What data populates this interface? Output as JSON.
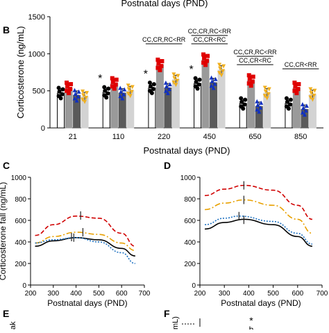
{
  "top_caption": "Postnatal days (PND)",
  "panels": {
    "b": "B",
    "c": "C",
    "d": "D",
    "e": "E",
    "f": "F"
  },
  "chart_data": [
    {
      "id": "B",
      "type": "bar",
      "xlabel": "Postnatal days (PND)",
      "ylabel": "Corticosterone (ng/mL)",
      "ylim": [
        0,
        1500
      ],
      "yticks": [
        0,
        500,
        1000,
        1500
      ],
      "categories": [
        "21",
        "110",
        "220",
        "450",
        "650",
        "850"
      ],
      "series": [
        {
          "color": "#ffffff",
          "edge": "#000000",
          "marker": "circle",
          "marker_color": "#000000",
          "values": [
            470,
            480,
            540,
            600,
            330,
            330
          ]
        },
        {
          "color": "#9a9a9a",
          "edge": "#9a9a9a",
          "marker": "square",
          "marker_color": "#e00000",
          "values": [
            540,
            600,
            850,
            920,
            640,
            540
          ]
        },
        {
          "color": "#5a5a5a",
          "edge": "#5a5a5a",
          "marker": "triangle",
          "marker_color": "#1030c0",
          "values": [
            440,
            470,
            540,
            610,
            290,
            250
          ]
        },
        {
          "color": "#d3d3d3",
          "edge": "#d3d3d3",
          "marker": "triangle-down",
          "marker_color": "#f0b020",
          "values": [
            420,
            500,
            650,
            780,
            470,
            450
          ]
        }
      ],
      "stars": [
        "",
        "*",
        "*",
        "*",
        "",
        ""
      ],
      "significance": [
        {
          "category": "220",
          "lines": [
            "CC,CR,RC<RR"
          ]
        },
        {
          "category": "450",
          "lines": [
            "CC,CR,RC<RR",
            "CC,CR<RC"
          ]
        },
        {
          "category": "650",
          "lines": [
            "CC,CR,RC<RR",
            "CC,CR<RC"
          ]
        },
        {
          "category": "850",
          "lines": [
            "CC,CR<RR"
          ]
        }
      ]
    },
    {
      "id": "C",
      "type": "line",
      "xlabel": "Postnatal days (PND)",
      "ylabel": "Corticosterone fall (ng/mL)",
      "xlim": [
        200,
        700
      ],
      "ylim": [
        0,
        1000
      ],
      "xticks": [
        200,
        300,
        400,
        500,
        600,
        700
      ],
      "yticks": [
        0,
        200,
        400,
        600,
        800,
        1000
      ],
      "series": [
        {
          "color": "#000000",
          "dash": "solid",
          "x": [
            220,
            300,
            400,
            500,
            600,
            660
          ],
          "y": [
            360,
            410,
            440,
            420,
            340,
            270
          ],
          "peak": [
            390,
            440
          ]
        },
        {
          "color": "#d00000",
          "dash": "dashed",
          "x": [
            220,
            300,
            400,
            500,
            600,
            660
          ],
          "y": [
            460,
            560,
            640,
            620,
            480,
            360
          ],
          "peak": [
            420,
            645
          ]
        },
        {
          "color": "#e8a000",
          "dash": "dashdot",
          "x": [
            220,
            300,
            400,
            500,
            600,
            660
          ],
          "y": [
            390,
            450,
            490,
            470,
            390,
            320
          ],
          "peak": [
            430,
            490
          ]
        },
        {
          "color": "#1a6fc0",
          "dash": "dotted",
          "x": [
            220,
            300,
            400,
            500,
            600,
            660
          ],
          "y": [
            390,
            420,
            440,
            400,
            300,
            200
          ],
          "peak": [
            380,
            445
          ]
        }
      ]
    },
    {
      "id": "D",
      "type": "line",
      "xlabel": "Postnatal days (PND)",
      "ylabel": "",
      "xlim": [
        200,
        700
      ],
      "ylim": [
        0,
        1000
      ],
      "xticks": [
        200,
        300,
        400,
        500,
        600,
        700
      ],
      "yticks": [
        0,
        200,
        400,
        600,
        800,
        1000
      ],
      "series": [
        {
          "color": "#000000",
          "dash": "solid",
          "x": [
            220,
            300,
            380,
            500,
            600,
            660
          ],
          "y": [
            520,
            580,
            610,
            560,
            450,
            360
          ],
          "peak": [
            380,
            605
          ]
        },
        {
          "color": "#d00000",
          "dash": "dashed",
          "x": [
            220,
            300,
            380,
            500,
            600,
            660
          ],
          "y": [
            830,
            890,
            925,
            880,
            740,
            610
          ],
          "peak": [
            380,
            925
          ]
        },
        {
          "color": "#e8a000",
          "dash": "dashdot",
          "x": [
            220,
            300,
            380,
            500,
            600,
            660
          ],
          "y": [
            700,
            760,
            790,
            740,
            610,
            480
          ],
          "peak": [
            380,
            790
          ]
        },
        {
          "color": "#1a6fc0",
          "dash": "dotted",
          "x": [
            220,
            300,
            360,
            500,
            600,
            660
          ],
          "y": [
            560,
            620,
            640,
            590,
            480,
            380
          ],
          "peak": [
            360,
            640
          ]
        }
      ]
    }
  ],
  "bottom_fragments": {
    "e_axis_text": "ak",
    "f_axis_text": "mL)",
    "f_star": "*",
    "f_letter": "b"
  }
}
